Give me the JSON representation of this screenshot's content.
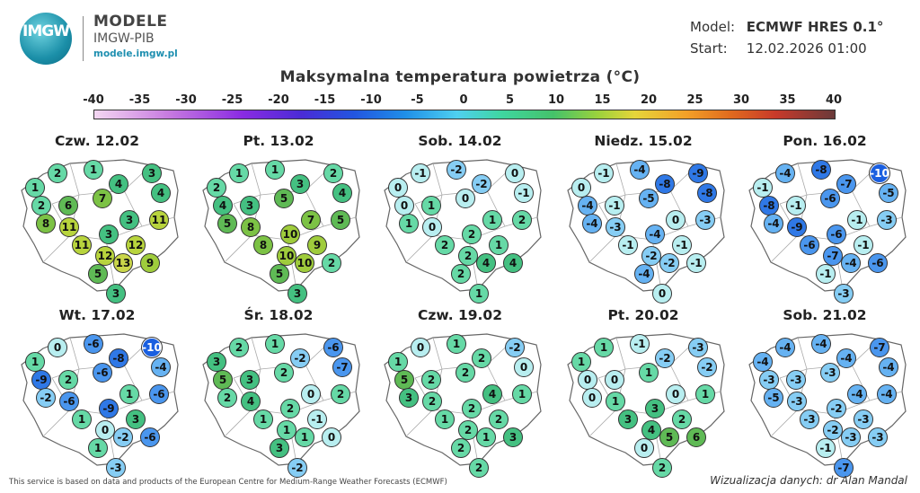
{
  "brand": {
    "logo_text": "IMGW",
    "title": "MODELE",
    "subtitle": "IMGW-PIB",
    "url": "modele.imgw.pl"
  },
  "model": {
    "model_label": "Model:",
    "model_value": "ECMWF HRES 0.1°",
    "start_label": "Start:",
    "start_value": "12.02.2026 01:00"
  },
  "title": "Maksymalna temperatura powietrza (°C)",
  "scale": {
    "ticks": [
      "-40",
      "-35",
      "-30",
      "-25",
      "-20",
      "-15",
      "-10",
      "-5",
      "0",
      "5",
      "10",
      "15",
      "20",
      "25",
      "30",
      "35",
      "40"
    ]
  },
  "days": [
    {
      "label": "Czw. 12.02",
      "values": [
        2,
        1,
        3,
        1,
        4,
        4,
        2,
        6,
        7,
        3,
        8,
        11,
        3,
        12,
        11,
        11,
        12,
        13,
        9,
        5,
        3
      ]
    },
    {
      "label": "Pt. 13.02",
      "values": [
        1,
        1,
        2,
        2,
        3,
        4,
        4,
        3,
        5,
        7,
        5,
        8,
        10,
        9,
        5,
        8,
        10,
        10,
        2,
        5,
        3
      ]
    },
    {
      "label": "Sob. 14.02",
      "values": [
        -1,
        -2,
        0,
        0,
        -2,
        -1,
        0,
        1,
        0,
        1,
        1,
        0,
        2,
        1,
        2,
        2,
        2,
        4,
        4,
        2,
        1
      ]
    },
    {
      "label": "Niedz. 15.02",
      "values": [
        -1,
        -4,
        -9,
        0,
        -8,
        -8,
        -4,
        -1,
        -5,
        0,
        -4,
        -3,
        -4,
        -1,
        -3,
        -1,
        -2,
        -2,
        -1,
        -4,
        0
      ]
    },
    {
      "label": "Pon. 16.02",
      "values": [
        -4,
        -8,
        -10,
        -1,
        -7,
        -5,
        -8,
        -1,
        -6,
        -1,
        -4,
        -9,
        -6,
        -1,
        -3,
        -6,
        -7,
        -4,
        -6,
        -1,
        -3
      ]
    },
    {
      "label": "Wt. 17.02",
      "values": [
        0,
        -6,
        -10,
        1,
        -8,
        -4,
        -9,
        2,
        -6,
        1,
        -2,
        -6,
        -9,
        3,
        -6,
        1,
        0,
        -2,
        -6,
        1,
        -3
      ]
    },
    {
      "label": "Śr. 18.02",
      "values": [
        2,
        1,
        -6,
        3,
        -2,
        -7,
        5,
        3,
        2,
        0,
        2,
        4,
        2,
        -1,
        2,
        1,
        1,
        1,
        0,
        3,
        -2
      ]
    },
    {
      "label": "Czw. 19.02",
      "values": [
        0,
        1,
        -2,
        1,
        2,
        0,
        5,
        2,
        2,
        4,
        3,
        2,
        2,
        2,
        1,
        1,
        2,
        1,
        3,
        2,
        2
      ]
    },
    {
      "label": "Pt. 20.02",
      "values": [
        1,
        -1,
        -3,
        1,
        -2,
        -2,
        0,
        0,
        1,
        0,
        0,
        1,
        3,
        2,
        1,
        3,
        4,
        5,
        6,
        0,
        2
      ]
    },
    {
      "label": "Sob. 21.02",
      "values": [
        -4,
        -4,
        -7,
        -4,
        -4,
        -4,
        -3,
        -3,
        -3,
        -4,
        -5,
        -3,
        -2,
        -3,
        -4,
        -3,
        -2,
        -3,
        -3,
        -1,
        -7
      ]
    }
  ],
  "footer": {
    "left": "This service is based on data and products of the European Centre for Medium-Range Weather Forecasts (ECMWF)",
    "right": "Wizualizacja danych: dr Alan Mandal"
  }
}
